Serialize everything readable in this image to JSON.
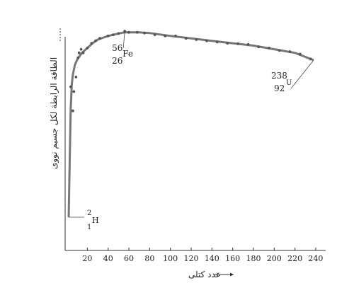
{
  "chart_data": {
    "type": "line",
    "title": "",
    "xlabel": "عدد كتلى",
    "ylabel": "الطاقة الرابطة لكل جسيم نووى",
    "xlim": [
      0,
      245
    ],
    "xticks": [
      20,
      40,
      60,
      80,
      100,
      120,
      140,
      160,
      180,
      200,
      220,
      240
    ],
    "grid": false,
    "legend": "none",
    "colors": {
      "axis": "#333333",
      "curve": "#777777",
      "points": "#555555",
      "text": "#222222"
    },
    "curve": {
      "x": [
        2,
        3,
        4,
        5,
        6,
        8,
        10,
        13,
        16,
        20,
        25,
        30,
        40,
        50,
        56,
        60,
        70,
        80,
        100,
        120,
        140,
        160,
        180,
        200,
        220,
        238
      ],
      "y": [
        1.1,
        3.5,
        5.6,
        6.6,
        7.0,
        7.4,
        7.6,
        7.8,
        7.95,
        8.1,
        8.3,
        8.45,
        8.6,
        8.7,
        8.75,
        8.75,
        8.75,
        8.72,
        8.6,
        8.5,
        8.4,
        8.3,
        8.2,
        8.05,
        7.9,
        7.6
      ]
    },
    "points": [
      {
        "x": 4,
        "y": 6.5
      },
      {
        "x": 6,
        "y": 5.5
      },
      {
        "x": 7,
        "y": 6.3
      },
      {
        "x": 9,
        "y": 6.9
      },
      {
        "x": 11,
        "y": 7.7
      },
      {
        "x": 12,
        "y": 7.9
      },
      {
        "x": 14,
        "y": 8.05
      },
      {
        "x": 16,
        "y": 7.9
      },
      {
        "x": 20,
        "y": 8.1
      },
      {
        "x": 24,
        "y": 8.3
      },
      {
        "x": 28,
        "y": 8.4
      },
      {
        "x": 32,
        "y": 8.5
      },
      {
        "x": 40,
        "y": 8.6
      },
      {
        "x": 45,
        "y": 8.65
      },
      {
        "x": 50,
        "y": 8.7
      },
      {
        "x": 56,
        "y": 8.8
      },
      {
        "x": 60,
        "y": 8.75
      },
      {
        "x": 68,
        "y": 8.75
      },
      {
        "x": 75,
        "y": 8.72
      },
      {
        "x": 85,
        "y": 8.65
      },
      {
        "x": 95,
        "y": 8.6
      },
      {
        "x": 105,
        "y": 8.6
      },
      {
        "x": 115,
        "y": 8.5
      },
      {
        "x": 125,
        "y": 8.45
      },
      {
        "x": 135,
        "y": 8.4
      },
      {
        "x": 145,
        "y": 8.35
      },
      {
        "x": 155,
        "y": 8.3
      },
      {
        "x": 165,
        "y": 8.28
      },
      {
        "x": 175,
        "y": 8.25
      },
      {
        "x": 185,
        "y": 8.15
      },
      {
        "x": 195,
        "y": 8.1
      },
      {
        "x": 205,
        "y": 8.0
      },
      {
        "x": 215,
        "y": 7.95
      },
      {
        "x": 225,
        "y": 7.85
      },
      {
        "x": 235,
        "y": 7.65
      }
    ],
    "annotations": [
      {
        "id": "h2",
        "mass": "2",
        "atomic": "1",
        "symbol": "H",
        "x": 2,
        "y": 1.1
      },
      {
        "id": "fe56",
        "mass": "56",
        "atomic": "26",
        "symbol": "Fe",
        "x": 56,
        "y": 8.8
      },
      {
        "id": "u238",
        "mass": "238",
        "atomic": "92",
        "symbol": "U",
        "x": 238,
        "y": 7.6
      }
    ]
  }
}
